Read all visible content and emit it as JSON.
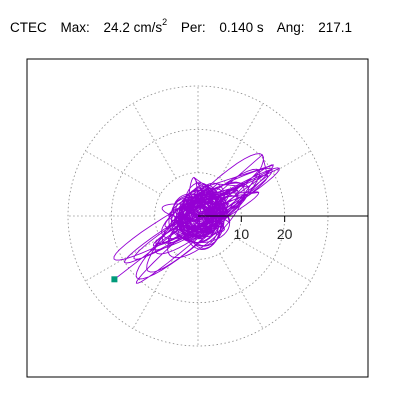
{
  "header": {
    "station": "CTEC",
    "max_label": "Max:",
    "max_value": "24.2 cm/s",
    "max_exp": "2",
    "period_label": "Per:",
    "period_value": "0.140 s",
    "angle_label": "Ang:",
    "angle_value": "217.1"
  },
  "colors": {
    "trace": "#9400d3",
    "marker": "#009a7a",
    "grid": "#888888"
  },
  "chart_data": {
    "type": "scatter",
    "title": "CTEC  Max: 24.2 cm/s^2  Per: 0.140 s  Ang: 217.1",
    "plot_kind": "polar particle-motion (hodogram)",
    "radial_ticks": [
      10,
      20
    ],
    "radial_ticks_label": [
      "10",
      "20"
    ],
    "rmax": 30,
    "angular_spokes_deg": [
      0,
      30,
      60,
      90,
      120,
      150,
      180,
      210,
      240,
      270,
      300,
      330
    ],
    "peak_point": {
      "r": 24.2,
      "angle_deg": 217.1
    },
    "grid": true
  }
}
